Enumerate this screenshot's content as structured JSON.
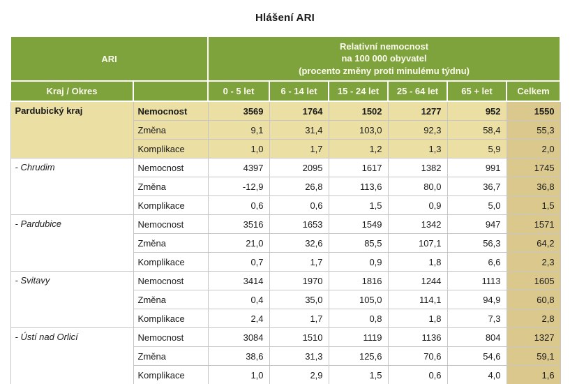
{
  "title": "Hlášení ARI",
  "colors": {
    "header_green": "#7EA23C",
    "header_text": "#FBFBEC",
    "kraj_row_bg": "#EBDFA3",
    "celkem_col_bg": "#DBC88C",
    "district_row_bg": "#FFFFFF"
  },
  "table": {
    "corner_label": "ARI",
    "span_header": "Relativní nemocnost\nna 100 000 obyvatel\n(procento změny proti minulému týdnu)",
    "col_headers": [
      "Kraj / Okres",
      "",
      "0 - 5 let",
      "6 - 14 let",
      "15 - 24 let",
      "25 - 64 let",
      "65 + let",
      "Celkem"
    ],
    "groups": [
      {
        "label": "Pardubický kraj",
        "style": "kraj",
        "rows": [
          {
            "label": "Nemocnost",
            "values": [
              "3569",
              "1764",
              "1502",
              "1277",
              "952",
              "1550"
            ]
          },
          {
            "label": "Změna",
            "values": [
              "9,1",
              "31,4",
              "103,0",
              "92,3",
              "58,4",
              "55,3"
            ]
          },
          {
            "label": "Komplikace",
            "values": [
              "1,0",
              "1,7",
              "1,2",
              "1,3",
              "5,9",
              "2,0"
            ]
          }
        ]
      },
      {
        "label": "- Chrudim",
        "style": "district",
        "rows": [
          {
            "label": "Nemocnost",
            "values": [
              "4397",
              "2095",
              "1617",
              "1382",
              "991",
              "1745"
            ]
          },
          {
            "label": "Změna",
            "values": [
              "-12,9",
              "26,8",
              "113,6",
              "80,0",
              "36,7",
              "36,8"
            ]
          },
          {
            "label": "Komplikace",
            "values": [
              "0,6",
              "0,6",
              "1,5",
              "0,9",
              "5,0",
              "1,5"
            ]
          }
        ]
      },
      {
        "label": "- Pardubice",
        "style": "district",
        "rows": [
          {
            "label": "Nemocnost",
            "values": [
              "3516",
              "1653",
              "1549",
              "1342",
              "947",
              "1571"
            ]
          },
          {
            "label": "Změna",
            "values": [
              "21,0",
              "32,6",
              "85,5",
              "107,1",
              "56,3",
              "64,2"
            ]
          },
          {
            "label": "Komplikace",
            "values": [
              "0,7",
              "1,7",
              "0,9",
              "1,8",
              "6,6",
              "2,3"
            ]
          }
        ]
      },
      {
        "label": "- Svitavy",
        "style": "district",
        "rows": [
          {
            "label": "Nemocnost",
            "values": [
              "3414",
              "1970",
              "1816",
              "1244",
              "1113",
              "1605"
            ]
          },
          {
            "label": "Změna",
            "values": [
              "0,4",
              "35,0",
              "105,0",
              "114,1",
              "94,9",
              "60,8"
            ]
          },
          {
            "label": "Komplikace",
            "values": [
              "2,4",
              "1,7",
              "0,8",
              "1,8",
              "7,3",
              "2,8"
            ]
          }
        ]
      },
      {
        "label": "- Ústí nad Orlicí",
        "style": "district",
        "rows": [
          {
            "label": "Nemocnost",
            "values": [
              "3084",
              "1510",
              "1119",
              "1136",
              "804",
              "1327"
            ]
          },
          {
            "label": "Změna",
            "values": [
              "38,6",
              "31,3",
              "125,6",
              "70,6",
              "54,6",
              "59,1"
            ]
          },
          {
            "label": "Komplikace",
            "values": [
              "1,0",
              "2,9",
              "1,5",
              "0,6",
              "4,0",
              "1,6"
            ]
          }
        ]
      }
    ]
  }
}
